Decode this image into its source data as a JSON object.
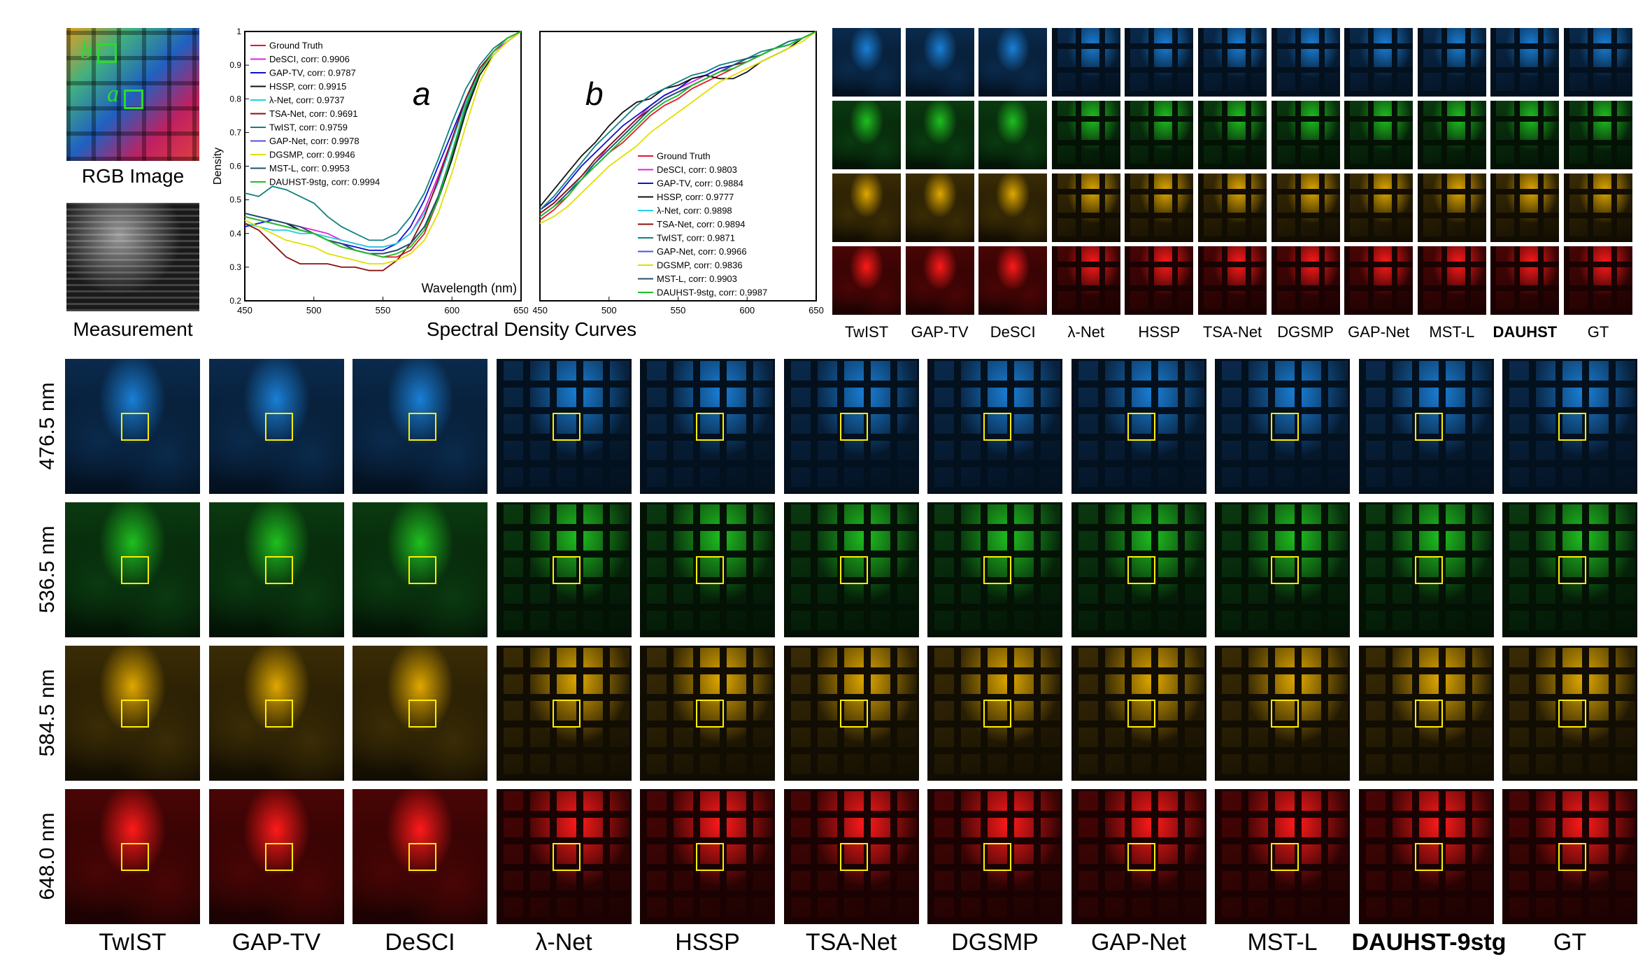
{
  "top_left": {
    "rgb_caption": "RGB Image",
    "measurement_caption": "Measurement",
    "marker_a": "a",
    "marker_b": "b"
  },
  "spectral_caption": "Spectral Density Curves",
  "colors": {
    "blue": "#1a7fd6",
    "green": "#1fbf1f",
    "yellow": "#e0a800",
    "red": "#e01010",
    "box": "#ffee00"
  },
  "methods_small": [
    "TwIST",
    "GAP-TV",
    "DeSCI",
    "λ-Net",
    "HSSP",
    "TSA-Net",
    "DGSMP",
    "GAP-Net",
    "MST-L",
    "DAUHST",
    "GT"
  ],
  "methods_big": [
    "TwIST",
    "GAP-TV",
    "DeSCI",
    "λ-Net",
    "HSSP",
    "TSA-Net",
    "DGSMP",
    "GAP-Net",
    "MST-L",
    "DAUHST-9stg",
    "GT"
  ],
  "bold_index": 9,
  "rows": [
    {
      "label": "476.5 nm",
      "color": "blue"
    },
    {
      "label": "536.5 nm",
      "color": "green"
    },
    {
      "label": "584.5 nm",
      "color": "yellow"
    },
    {
      "label": "648.0 nm",
      "color": "red"
    }
  ],
  "chart_data": [
    {
      "type": "line",
      "annotation": "a",
      "xlabel": "Wavelength (nm)",
      "ylabel": "Density",
      "xlim": [
        450,
        650
      ],
      "ylim": [
        0.2,
        1
      ],
      "xticks": [
        450,
        500,
        550,
        600,
        650
      ],
      "yticks": [
        0.2,
        0.3,
        0.4,
        0.5,
        0.6,
        0.7,
        0.8,
        0.9,
        1
      ],
      "x": [
        450,
        460,
        470,
        480,
        490,
        500,
        510,
        520,
        530,
        540,
        550,
        560,
        570,
        580,
        590,
        600,
        610,
        620,
        630,
        640,
        650
      ],
      "series": [
        {
          "name": "Ground Truth",
          "corr": "0.9906",
          "color": "#e8142a",
          "values": [
            0.45,
            0.44,
            0.43,
            0.42,
            0.41,
            0.4,
            0.38,
            0.36,
            0.35,
            0.34,
            0.33,
            0.33,
            0.35,
            0.4,
            0.5,
            0.64,
            0.78,
            0.88,
            0.94,
            0.98,
            1.0
          ]
        },
        {
          "name": "DeSCI, corr: 0.9906",
          "color": "#e020e0",
          "values": [
            0.46,
            0.45,
            0.44,
            0.43,
            0.42,
            0.41,
            0.4,
            0.38,
            0.37,
            0.36,
            0.36,
            0.37,
            0.4,
            0.47,
            0.57,
            0.68,
            0.8,
            0.89,
            0.94,
            0.97,
            1.0
          ]
        },
        {
          "name": "GAP-TV, corr: 0.9787",
          "color": "#1010d0",
          "values": [
            0.42,
            0.43,
            0.44,
            0.43,
            0.41,
            0.4,
            0.38,
            0.37,
            0.36,
            0.35,
            0.35,
            0.37,
            0.42,
            0.5,
            0.6,
            0.7,
            0.8,
            0.88,
            0.94,
            0.98,
            1.0
          ]
        },
        {
          "name": "HSSP, corr: 0.9915",
          "color": "#111111",
          "values": [
            0.46,
            0.45,
            0.44,
            0.43,
            0.41,
            0.4,
            0.38,
            0.37,
            0.35,
            0.34,
            0.34,
            0.35,
            0.37,
            0.42,
            0.5,
            0.62,
            0.76,
            0.87,
            0.93,
            0.97,
            1.0
          ]
        },
        {
          "name": "λ-Net, corr: 0.9737",
          "color": "#20d0e0",
          "values": [
            0.43,
            0.42,
            0.41,
            0.41,
            0.4,
            0.4,
            0.39,
            0.38,
            0.37,
            0.36,
            0.36,
            0.37,
            0.4,
            0.46,
            0.55,
            0.67,
            0.79,
            0.88,
            0.94,
            0.98,
            1.0
          ]
        },
        {
          "name": "TSA-Net, corr: 0.9691",
          "color": "#8a1010",
          "values": [
            0.43,
            0.41,
            0.37,
            0.33,
            0.31,
            0.31,
            0.31,
            0.3,
            0.3,
            0.29,
            0.29,
            0.32,
            0.37,
            0.45,
            0.56,
            0.68,
            0.8,
            0.89,
            0.94,
            0.98,
            1.0
          ]
        },
        {
          "name": "TwIST, corr: 0.9759",
          "color": "#108080",
          "values": [
            0.52,
            0.51,
            0.54,
            0.53,
            0.51,
            0.49,
            0.45,
            0.42,
            0.4,
            0.38,
            0.38,
            0.4,
            0.45,
            0.52,
            0.62,
            0.73,
            0.83,
            0.9,
            0.95,
            0.98,
            1.0
          ]
        },
        {
          "name": "GAP-Net, corr: 0.9978",
          "color": "#5050e0",
          "values": [
            0.45,
            0.44,
            0.43,
            0.42,
            0.41,
            0.4,
            0.38,
            0.37,
            0.35,
            0.34,
            0.34,
            0.35,
            0.37,
            0.42,
            0.51,
            0.64,
            0.78,
            0.88,
            0.94,
            0.98,
            1.0
          ]
        },
        {
          "name": "DGSMP, corr: 0.9946",
          "color": "#e0e000",
          "values": [
            0.44,
            0.42,
            0.4,
            0.38,
            0.37,
            0.36,
            0.34,
            0.33,
            0.32,
            0.31,
            0.31,
            0.32,
            0.34,
            0.38,
            0.46,
            0.58,
            0.72,
            0.85,
            0.93,
            0.97,
            1.0
          ]
        },
        {
          "name": "MST-L, corr: 0.9953",
          "color": "#205070",
          "values": [
            0.46,
            0.45,
            0.44,
            0.43,
            0.42,
            0.4,
            0.38,
            0.37,
            0.35,
            0.34,
            0.34,
            0.35,
            0.37,
            0.42,
            0.51,
            0.63,
            0.77,
            0.88,
            0.94,
            0.98,
            1.0
          ]
        },
        {
          "name": "DAUHST-9stg, corr: 0.9994",
          "color": "#20c020",
          "values": [
            0.45,
            0.44,
            0.43,
            0.42,
            0.41,
            0.4,
            0.38,
            0.36,
            0.35,
            0.34,
            0.33,
            0.34,
            0.36,
            0.41,
            0.5,
            0.64,
            0.78,
            0.88,
            0.94,
            0.98,
            1.0
          ]
        }
      ]
    },
    {
      "type": "line",
      "annotation": "b",
      "xlim": [
        450,
        650
      ],
      "ylim": [
        0.2,
        1
      ],
      "xticks": [
        450,
        500,
        550,
        600,
        650
      ],
      "x": [
        450,
        460,
        470,
        480,
        490,
        500,
        510,
        520,
        530,
        540,
        550,
        560,
        570,
        580,
        590,
        600,
        610,
        620,
        630,
        640,
        650
      ],
      "series": [
        {
          "name": "Ground Truth",
          "color": "#e8142a",
          "values": [
            0.44,
            0.47,
            0.51,
            0.56,
            0.6,
            0.64,
            0.67,
            0.71,
            0.75,
            0.78,
            0.8,
            0.83,
            0.85,
            0.87,
            0.89,
            0.91,
            0.93,
            0.95,
            0.96,
            0.98,
            1.0
          ]
        },
        {
          "name": "DeSCI, corr: 0.9803",
          "color": "#e020e0",
          "values": [
            0.46,
            0.49,
            0.53,
            0.57,
            0.61,
            0.66,
            0.7,
            0.74,
            0.78,
            0.81,
            0.83,
            0.85,
            0.87,
            0.89,
            0.9,
            0.92,
            0.93,
            0.95,
            0.96,
            0.98,
            1.0
          ]
        },
        {
          "name": "GAP-TV, corr: 0.9884",
          "color": "#1010d0",
          "values": [
            0.47,
            0.5,
            0.55,
            0.6,
            0.64,
            0.68,
            0.72,
            0.75,
            0.78,
            0.81,
            0.83,
            0.86,
            0.87,
            0.89,
            0.9,
            0.92,
            0.93,
            0.95,
            0.97,
            0.98,
            1.0
          ]
        },
        {
          "name": "HSSP, corr: 0.9777",
          "color": "#111111",
          "values": [
            0.48,
            0.53,
            0.58,
            0.63,
            0.67,
            0.72,
            0.76,
            0.79,
            0.8,
            0.83,
            0.84,
            0.86,
            0.87,
            0.86,
            0.86,
            0.88,
            0.91,
            0.93,
            0.95,
            0.98,
            1.0
          ]
        },
        {
          "name": "λ-Net, corr: 0.9898",
          "color": "#20d0e0",
          "values": [
            0.45,
            0.48,
            0.52,
            0.57,
            0.61,
            0.65,
            0.69,
            0.73,
            0.77,
            0.8,
            0.82,
            0.84,
            0.86,
            0.88,
            0.9,
            0.92,
            0.93,
            0.95,
            0.96,
            0.98,
            1.0
          ]
        },
        {
          "name": "TSA-Net, corr: 0.9894",
          "color": "#8a1010",
          "values": [
            0.46,
            0.49,
            0.53,
            0.57,
            0.62,
            0.66,
            0.7,
            0.74,
            0.77,
            0.8,
            0.82,
            0.84,
            0.86,
            0.88,
            0.9,
            0.91,
            0.93,
            0.95,
            0.96,
            0.98,
            1.0
          ]
        },
        {
          "name": "TwIST, corr: 0.9871",
          "color": "#108080",
          "values": [
            0.47,
            0.51,
            0.56,
            0.61,
            0.66,
            0.7,
            0.74,
            0.78,
            0.81,
            0.83,
            0.85,
            0.87,
            0.88,
            0.9,
            0.91,
            0.92,
            0.94,
            0.95,
            0.97,
            0.98,
            1.0
          ]
        },
        {
          "name": "GAP-Net, corr: 0.9966",
          "color": "#5050e0",
          "values": [
            0.45,
            0.48,
            0.52,
            0.56,
            0.6,
            0.64,
            0.68,
            0.72,
            0.76,
            0.79,
            0.81,
            0.84,
            0.86,
            0.88,
            0.89,
            0.91,
            0.93,
            0.95,
            0.96,
            0.98,
            1.0
          ]
        },
        {
          "name": "DGSMP, corr: 0.9836",
          "color": "#e0e000",
          "values": [
            0.43,
            0.45,
            0.48,
            0.52,
            0.56,
            0.6,
            0.63,
            0.66,
            0.7,
            0.73,
            0.76,
            0.79,
            0.82,
            0.85,
            0.87,
            0.89,
            0.91,
            0.93,
            0.95,
            0.97,
            1.0
          ]
        },
        {
          "name": "MST-L, corr: 0.9903",
          "color": "#205070",
          "values": [
            0.45,
            0.48,
            0.52,
            0.56,
            0.61,
            0.65,
            0.69,
            0.73,
            0.77,
            0.8,
            0.82,
            0.84,
            0.86,
            0.88,
            0.9,
            0.92,
            0.93,
            0.95,
            0.96,
            0.98,
            1.0
          ]
        },
        {
          "name": "DAUHST-9stg, corr: 0.9987",
          "color": "#20c020",
          "values": [
            0.45,
            0.48,
            0.51,
            0.56,
            0.6,
            0.64,
            0.68,
            0.72,
            0.76,
            0.79,
            0.81,
            0.84,
            0.86,
            0.88,
            0.89,
            0.91,
            0.93,
            0.95,
            0.96,
            0.98,
            1.0
          ]
        }
      ]
    }
  ]
}
